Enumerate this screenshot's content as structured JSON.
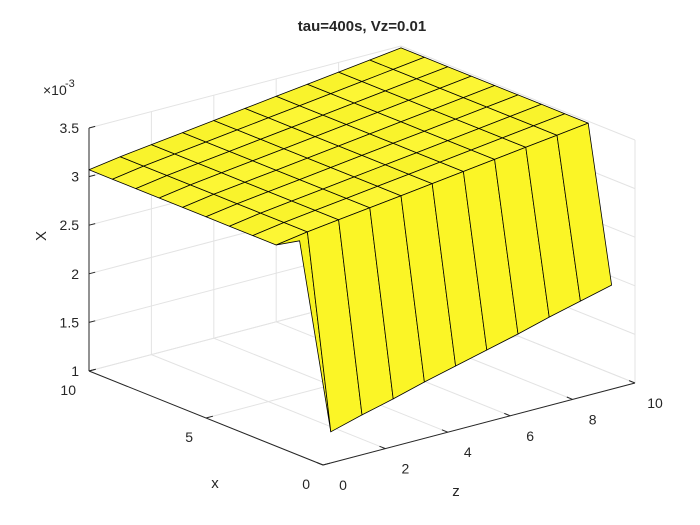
{
  "figure": {
    "background": "#ffffff",
    "surface_color": "#ffff33",
    "edge_color": "#000000"
  },
  "chart_data": {
    "type": "surface",
    "title": "tau=400s, Vz=0.01",
    "xlabel": "z",
    "ylabel": "x",
    "zlabel": "X",
    "z_exponent_label": "×10",
    "z_exponent_power": "-3",
    "grid": true,
    "xlim": [
      0,
      10
    ],
    "ylim": [
      0,
      10
    ],
    "zlim": [
      1,
      3.5
    ],
    "x_ticks": [
      "0",
      "2",
      "4",
      "6",
      "8",
      "10"
    ],
    "y_ticks": [
      "0",
      "5",
      "10"
    ],
    "z_ticks": [
      "1",
      "1.5",
      "2",
      "2.5",
      "3",
      "3.5"
    ],
    "z_tick_values": [
      1.0,
      1.5,
      2.0,
      2.5,
      3.0,
      3.5
    ],
    "note_units": "z values in units of 1e-3",
    "z_grid": [
      0,
      1,
      2,
      3,
      4,
      5,
      6,
      7,
      8,
      9,
      10
    ],
    "x_grid": [
      1,
      2,
      3,
      4,
      5,
      6,
      7,
      8,
      9,
      10
    ],
    "edge_values_x1": [
      3.21,
      1.16,
      1.25,
      1.33,
      1.42,
      1.5,
      1.58,
      1.66,
      1.75,
      1.83,
      1.91
    ],
    "surface_values_x2_to_x10": [
      3.07,
      3.12,
      3.16,
      3.2,
      3.24,
      3.28,
      3.32,
      3.36,
      3.4,
      3.44,
      3.48
    ]
  }
}
